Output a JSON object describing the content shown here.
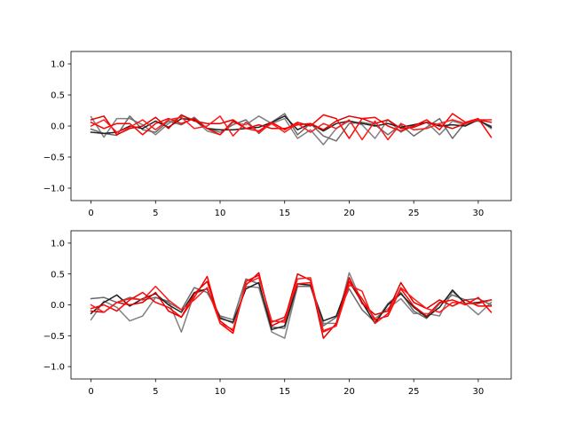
{
  "chart_data": [
    {
      "type": "line",
      "title": "",
      "xlabel": "",
      "ylabel": "",
      "xlim": [
        -1.55,
        32.55
      ],
      "ylim": [
        -1.2,
        1.2
      ],
      "xticks": [
        0,
        5,
        10,
        15,
        20,
        25,
        30
      ],
      "yticks": [
        -1.0,
        -0.5,
        0.0,
        0.5,
        1.0
      ],
      "xtick_labels": [
        "0",
        "5",
        "10",
        "15",
        "20",
        "25",
        "30"
      ],
      "ytick_labels": [
        "−1.0",
        "−0.5",
        "0.0",
        "0.5",
        "1.0"
      ],
      "grid": false,
      "x": [
        0,
        1,
        2,
        3,
        4,
        5,
        6,
        7,
        8,
        9,
        10,
        11,
        12,
        13,
        14,
        15,
        16,
        17,
        18,
        19,
        20,
        21,
        22,
        23,
        24,
        25,
        26,
        27,
        28,
        29,
        30,
        31
      ],
      "series": [
        {
          "color": "#808080",
          "values": [
            0.15,
            -0.18,
            0.12,
            0.12,
            0.02,
            -0.14,
            0.04,
            0.16,
            0.1,
            -0.08,
            -0.14,
            0.06,
            0.02,
            0.16,
            0.04,
            0.12,
            -0.2,
            -0.06,
            -0.3,
            -0.04,
            0.08,
            0.02,
            -0.2,
            0.1,
            -0.1,
            0.02,
            0.06,
            -0.14,
            0.08,
            0.02,
            0.1,
            -0.04
          ]
        },
        {
          "color": "#6b6b6b",
          "values": [
            -0.05,
            -0.12,
            -0.15,
            0.16,
            -0.06,
            -0.1,
            0.08,
            0.02,
            0.14,
            -0.04,
            -0.1,
            0.02,
            0.1,
            -0.12,
            0.06,
            0.2,
            -0.14,
            0.04,
            -0.16,
            -0.24,
            0.04,
            0.06,
            0.02,
            -0.14,
            0.02,
            -0.16,
            -0.02,
            0.12,
            -0.2,
            0.06,
            0.08,
            0.0
          ]
        },
        {
          "color": "#202020",
          "values": [
            -0.1,
            -0.12,
            -0.1,
            0.0,
            -0.04,
            0.08,
            -0.02,
            0.12,
            0.1,
            -0.04,
            -0.06,
            -0.06,
            -0.04,
            -0.02,
            0.06,
            0.16,
            -0.06,
            0.04,
            -0.08,
            0.04,
            0.08,
            0.04,
            0.0,
            0.04,
            -0.02,
            0.02,
            0.06,
            0.0,
            0.02,
            0.0,
            0.1,
            -0.02
          ]
        },
        {
          "color": "#e00000",
          "values": [
            0.1,
            0.16,
            -0.14,
            -0.04,
            0.0,
            0.14,
            -0.04,
            0.18,
            0.08,
            0.04,
            0.04,
            0.1,
            -0.04,
            0.02,
            -0.04,
            -0.04,
            0.02,
            0.04,
            -0.06,
            0.08,
            0.16,
            0.12,
            0.04,
            0.1,
            -0.04,
            -0.02,
            0.06,
            0.02,
            -0.04,
            0.04,
            0.1,
            0.06
          ]
        },
        {
          "color": "#ff0000",
          "values": [
            0.06,
            -0.04,
            0.04,
            0.04,
            -0.14,
            0.04,
            0.12,
            0.04,
            0.12,
            -0.04,
            -0.14,
            0.08,
            -0.04,
            -0.08,
            0.06,
            -0.06,
            0.06,
            0.0,
            0.18,
            0.12,
            -0.2,
            0.12,
            0.14,
            0.0,
            -0.08,
            0.0,
            0.1,
            -0.06,
            0.2,
            0.06,
            0.12,
            -0.18
          ]
        },
        {
          "color": "#ff1a1a",
          "values": [
            0.0,
            0.1,
            -0.1,
            -0.02,
            0.1,
            -0.06,
            0.1,
            0.14,
            -0.04,
            0.0,
            0.16,
            -0.16,
            0.06,
            -0.1,
            0.04,
            -0.1,
            0.04,
            -0.1,
            0.04,
            -0.04,
            0.1,
            -0.22,
            0.08,
            -0.22,
            0.04,
            -0.06,
            -0.04,
            0.04,
            0.1,
            0.04,
            0.1,
            0.1
          ]
        }
      ]
    },
    {
      "type": "line",
      "title": "",
      "xlabel": "",
      "ylabel": "",
      "xlim": [
        -1.55,
        32.55
      ],
      "ylim": [
        -1.2,
        1.2
      ],
      "xticks": [
        0,
        5,
        10,
        15,
        20,
        25,
        30
      ],
      "yticks": [
        -1.0,
        -0.5,
        0.0,
        0.5,
        1.0
      ],
      "xtick_labels": [
        "0",
        "5",
        "10",
        "15",
        "20",
        "25",
        "30"
      ],
      "ytick_labels": [
        "−1.0",
        "−0.5",
        "0.0",
        "0.5",
        "1.0"
      ],
      "grid": false,
      "x": [
        0,
        1,
        2,
        3,
        4,
        5,
        6,
        7,
        8,
        9,
        10,
        11,
        12,
        13,
        14,
        15,
        16,
        17,
        18,
        19,
        20,
        21,
        22,
        23,
        24,
        25,
        26,
        27,
        28,
        29,
        30,
        31
      ],
      "series": [
        {
          "color": "#808080",
          "values": [
            -0.24,
            0.06,
            -0.04,
            -0.26,
            -0.18,
            0.12,
            0.06,
            -0.44,
            0.18,
            0.26,
            -0.2,
            -0.3,
            0.3,
            0.28,
            -0.44,
            -0.54,
            0.3,
            0.3,
            -0.3,
            -0.3,
            0.52,
            0.04,
            -0.22,
            -0.06,
            0.1,
            -0.14,
            -0.14,
            -0.18,
            0.22,
            0.02,
            -0.16,
            0.04
          ]
        },
        {
          "color": "#6b6b6b",
          "values": [
            0.1,
            0.12,
            0.04,
            0.12,
            0.08,
            0.12,
            0.04,
            -0.08,
            0.28,
            0.2,
            -0.18,
            -0.24,
            0.42,
            0.34,
            -0.36,
            -0.38,
            0.3,
            0.3,
            -0.34,
            -0.2,
            0.26,
            -0.08,
            -0.28,
            0.02,
            0.2,
            -0.1,
            -0.22,
            0.02,
            0.16,
            0.08,
            0.1,
            0.0
          ]
        },
        {
          "color": "#202020",
          "values": [
            -0.14,
            0.04,
            0.16,
            -0.02,
            0.1,
            0.18,
            0.0,
            -0.12,
            0.2,
            0.26,
            -0.22,
            -0.28,
            0.26,
            0.36,
            -0.4,
            -0.34,
            0.34,
            0.32,
            -0.26,
            -0.18,
            0.38,
            0.04,
            -0.3,
            0.0,
            0.18,
            -0.04,
            -0.2,
            -0.04,
            0.24,
            0.02,
            0.04,
            0.08
          ]
        },
        {
          "color": "#e00000",
          "values": [
            -0.1,
            -0.12,
            0.04,
            0.0,
            0.04,
            0.2,
            -0.1,
            -0.2,
            0.18,
            0.38,
            -0.26,
            -0.42,
            0.32,
            0.52,
            -0.34,
            -0.24,
            0.5,
            0.4,
            -0.54,
            -0.3,
            0.44,
            0.02,
            -0.16,
            -0.1,
            0.36,
            0.04,
            -0.06,
            0.08,
            -0.02,
            0.08,
            -0.02,
            -0.02
          ]
        },
        {
          "color": "#ff0000",
          "values": [
            -0.06,
            0.0,
            -0.1,
            0.08,
            0.2,
            0.04,
            -0.04,
            -0.2,
            0.12,
            0.46,
            -0.3,
            -0.46,
            0.38,
            0.48,
            -0.28,
            -0.2,
            0.34,
            0.36,
            -0.42,
            -0.34,
            0.38,
            0.1,
            -0.24,
            -0.18,
            0.26,
            -0.02,
            -0.18,
            0.04,
            0.08,
            0.0,
            0.12,
            -0.12
          ]
        },
        {
          "color": "#ff1a1a",
          "values": [
            0.0,
            -0.12,
            0.04,
            0.1,
            0.08,
            0.3,
            0.08,
            -0.08,
            0.08,
            0.28,
            -0.3,
            -0.4,
            0.34,
            0.44,
            -0.26,
            -0.28,
            0.42,
            0.44,
            -0.44,
            -0.34,
            0.32,
            0.22,
            -0.3,
            -0.14,
            0.28,
            0.1,
            -0.06,
            -0.12,
            0.04,
            0.02,
            0.02,
            0.08
          ]
        }
      ]
    }
  ]
}
